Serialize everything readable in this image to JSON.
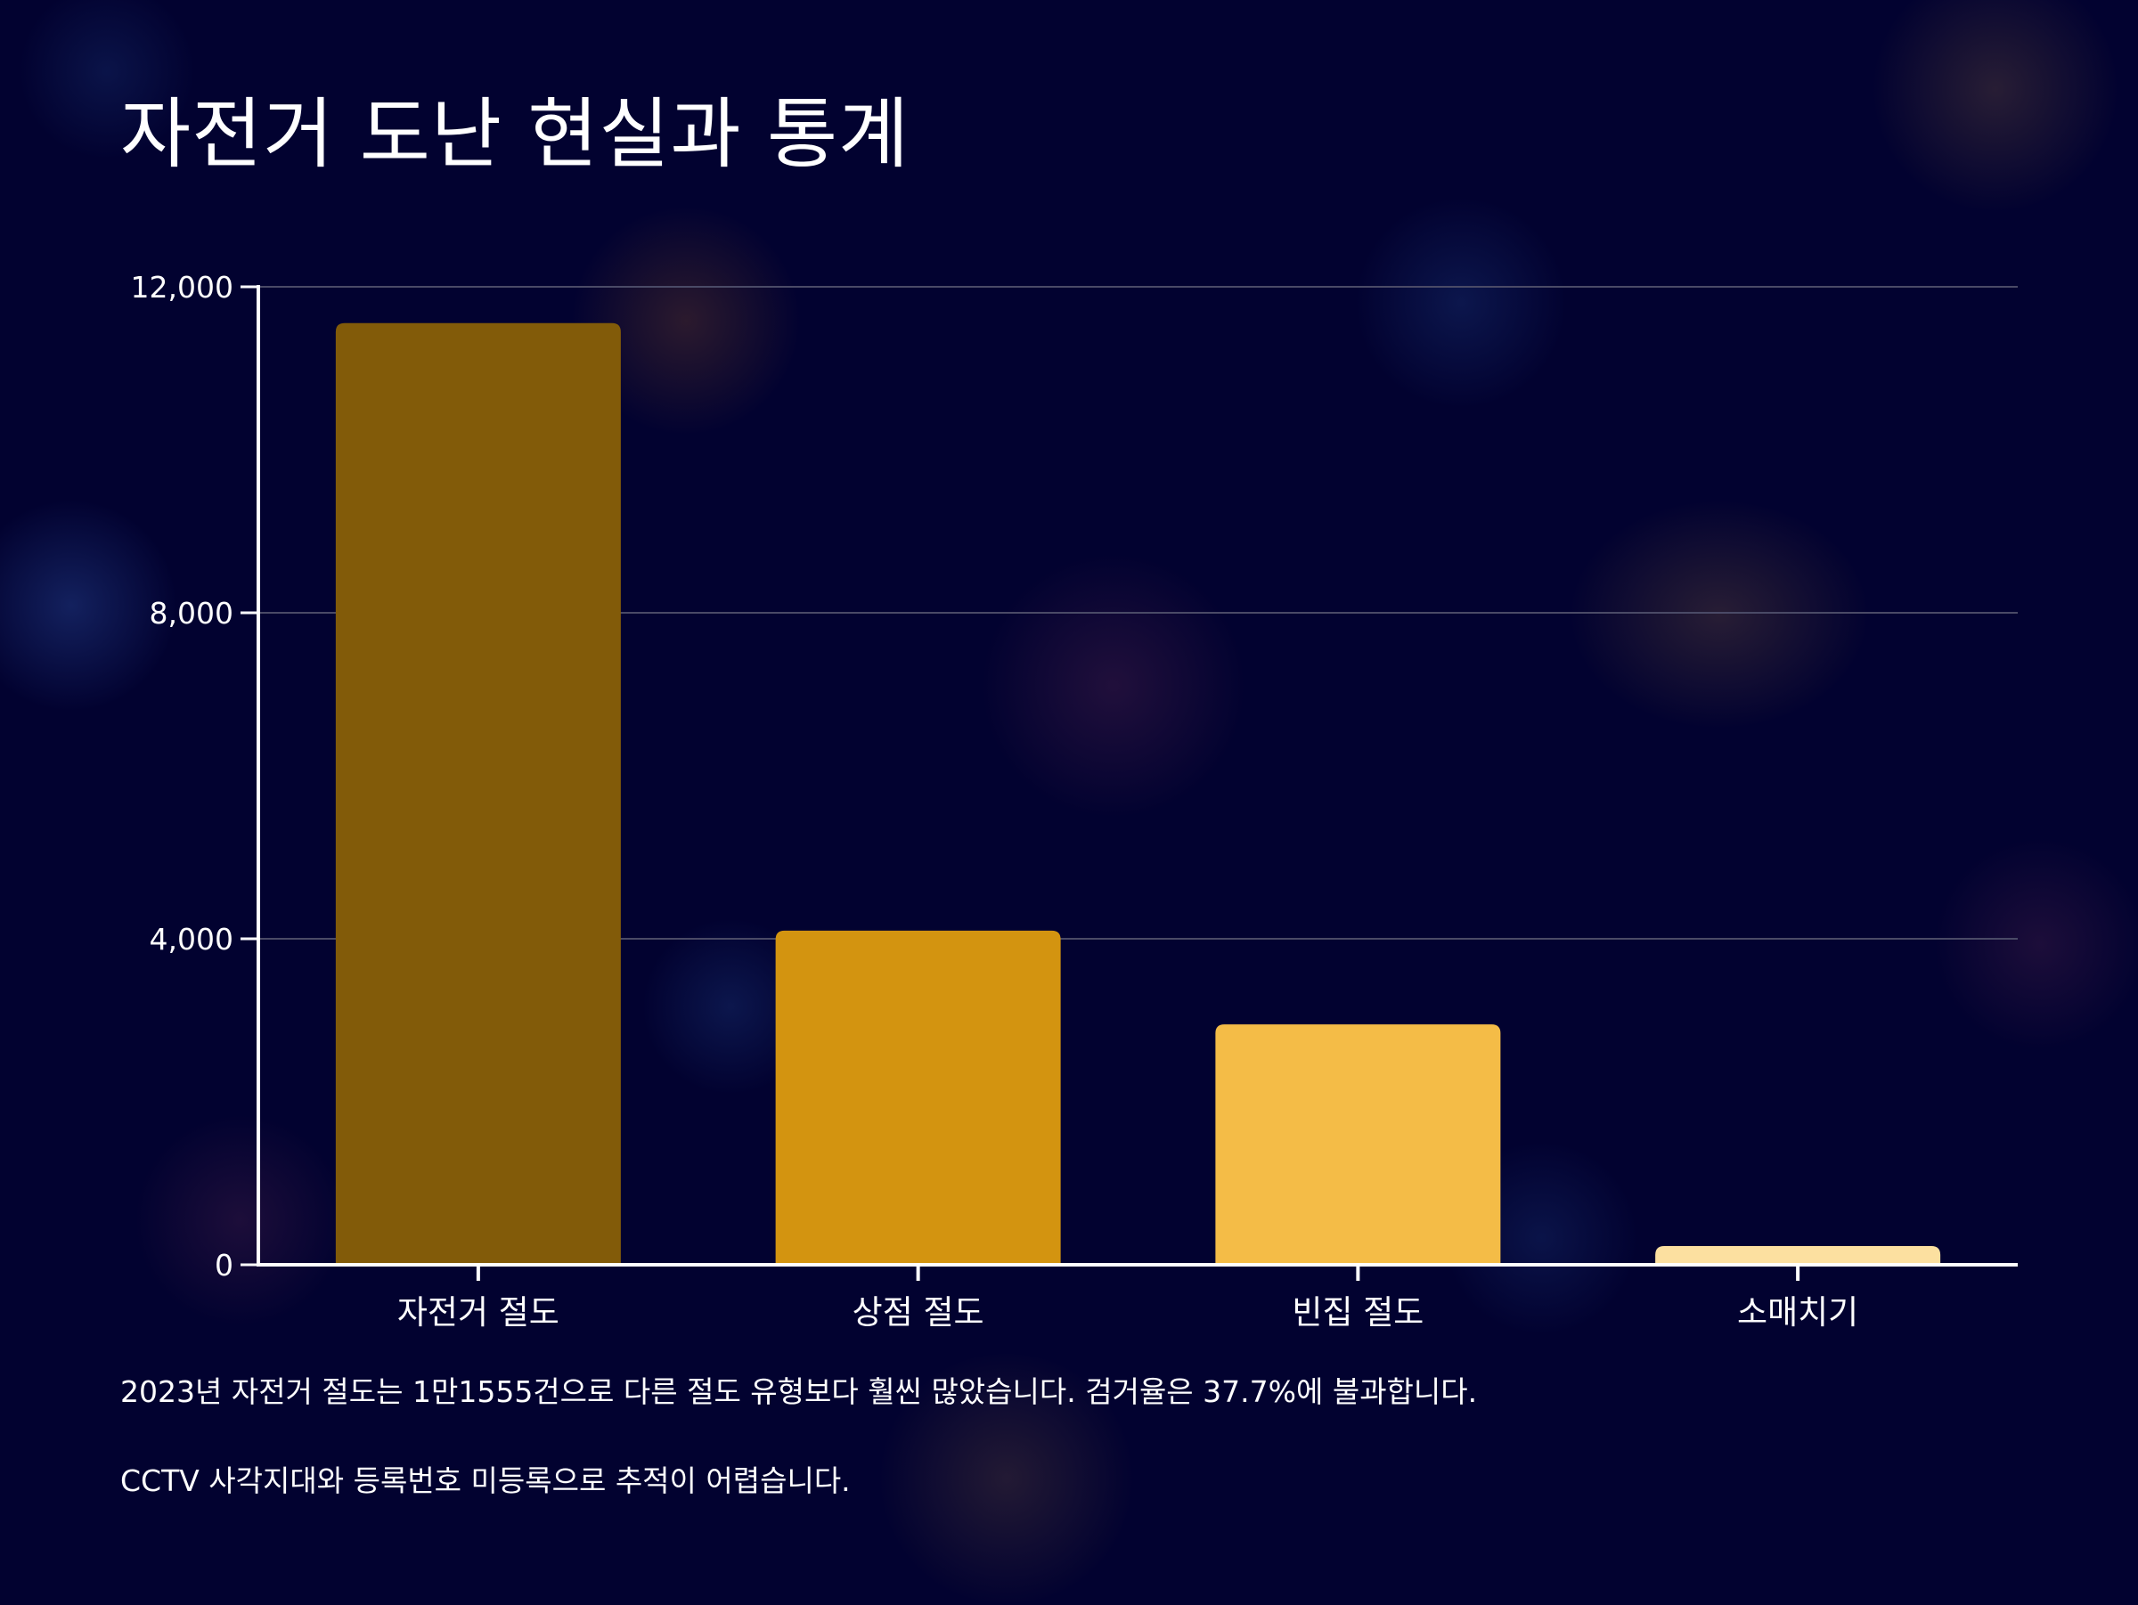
{
  "title": "자전거 도난 현실과 통계",
  "chart_data": {
    "type": "bar",
    "categories": [
      "자전거 절도",
      "상점 절도",
      "빈집 절도",
      "소매치기"
    ],
    "values": [
      11555,
      4100,
      2950,
      230
    ],
    "colors": [
      "#825B09",
      "#D39410",
      "#F4BC47",
      "#FCE0A0"
    ],
    "ylim": [
      0,
      12000
    ],
    "yticks": [
      0,
      4000,
      8000,
      12000
    ],
    "ytick_labels": [
      "0",
      "4,000",
      "8,000",
      "12,000"
    ],
    "grid": true,
    "title": "",
    "xlabel": "",
    "ylabel": ""
  },
  "notes": [
    "2023년 자전거 절도는 1만1555건으로 다른 절도 유형보다 훨씬 많았습니다. 검거율은 37.7%에 불과합니다.",
    "CCTV 사각지대와 등록번호 미등록으로 추적이 어렵습니다."
  ],
  "colors": {
    "background": "#020230",
    "axis": "#ffffff",
    "grid": "#4a4a66"
  }
}
